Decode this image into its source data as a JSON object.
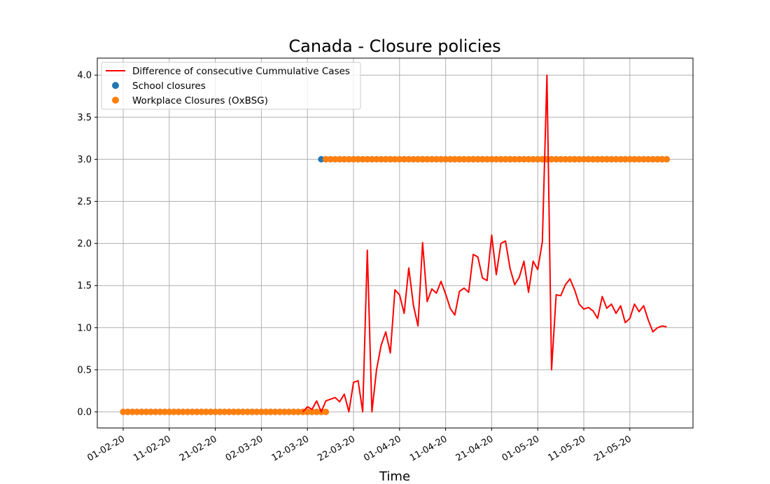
{
  "chart_data": {
    "type": "line",
    "title": "Canada - Closure policies",
    "xlabel": "Time",
    "ylabel": "",
    "ylim": [
      -0.2,
      4.2
    ],
    "yticks": [
      "0.0",
      "0.5",
      "1.0",
      "1.5",
      "2.0",
      "2.5",
      "3.0",
      "3.5",
      "4.0"
    ],
    "xticks": [
      "01-02-20",
      "11-02-20",
      "21-02-20",
      "02-03-20",
      "12-03-20",
      "22-03-20",
      "01-04-20",
      "11-04-20",
      "21-04-20",
      "01-05-20",
      "11-05-20",
      "21-05-20"
    ],
    "grid": true,
    "legend_position": "upper-left",
    "colors": {
      "cases": "#ff0000",
      "school": "#1f77b4",
      "workplace": "#ff7f0e",
      "grid": "#b0b0b0"
    },
    "series": [
      {
        "name": "Difference of consecutive Cummulative Cases",
        "kind": "line",
        "x_start": "11-03-20",
        "y": [
          0.0,
          0.06,
          0.03,
          0.13,
          0.0,
          0.13,
          0.15,
          0.17,
          0.12,
          0.21,
          0.0,
          0.35,
          0.37,
          0.0,
          1.92,
          0.0,
          0.5,
          0.79,
          0.95,
          0.7,
          1.45,
          1.39,
          1.17,
          1.71,
          1.27,
          1.02,
          2.01,
          1.31,
          1.46,
          1.41,
          1.55,
          1.4,
          1.23,
          1.15,
          1.43,
          1.47,
          1.42,
          1.87,
          1.84,
          1.59,
          1.56,
          2.1,
          1.63,
          2.0,
          2.03,
          1.7,
          1.51,
          1.6,
          1.79,
          1.42,
          1.79,
          1.69,
          2.02,
          4.0,
          0.5,
          1.39,
          1.38,
          1.51,
          1.58,
          1.45,
          1.28,
          1.22,
          1.24,
          1.2,
          1.11,
          1.37,
          1.23,
          1.28,
          1.17,
          1.26,
          1.06,
          1.11,
          1.28,
          1.19,
          1.26,
          1.09,
          0.95,
          1.0,
          1.02,
          1.01
        ]
      },
      {
        "name": "School closures",
        "kind": "points",
        "segments": [
          {
            "from": "01-02-20",
            "to": "15-03-20",
            "value": 0
          },
          {
            "from": "15-03-20",
            "to": "29-05-20",
            "value": 3
          }
        ]
      },
      {
        "name": "Workplace Closures (OxBSG)",
        "kind": "points",
        "segments": [
          {
            "from": "01-02-20",
            "to": "16-03-20",
            "value": 0
          },
          {
            "from": "16-03-20",
            "to": "29-05-20",
            "value": 3
          }
        ]
      }
    ]
  }
}
